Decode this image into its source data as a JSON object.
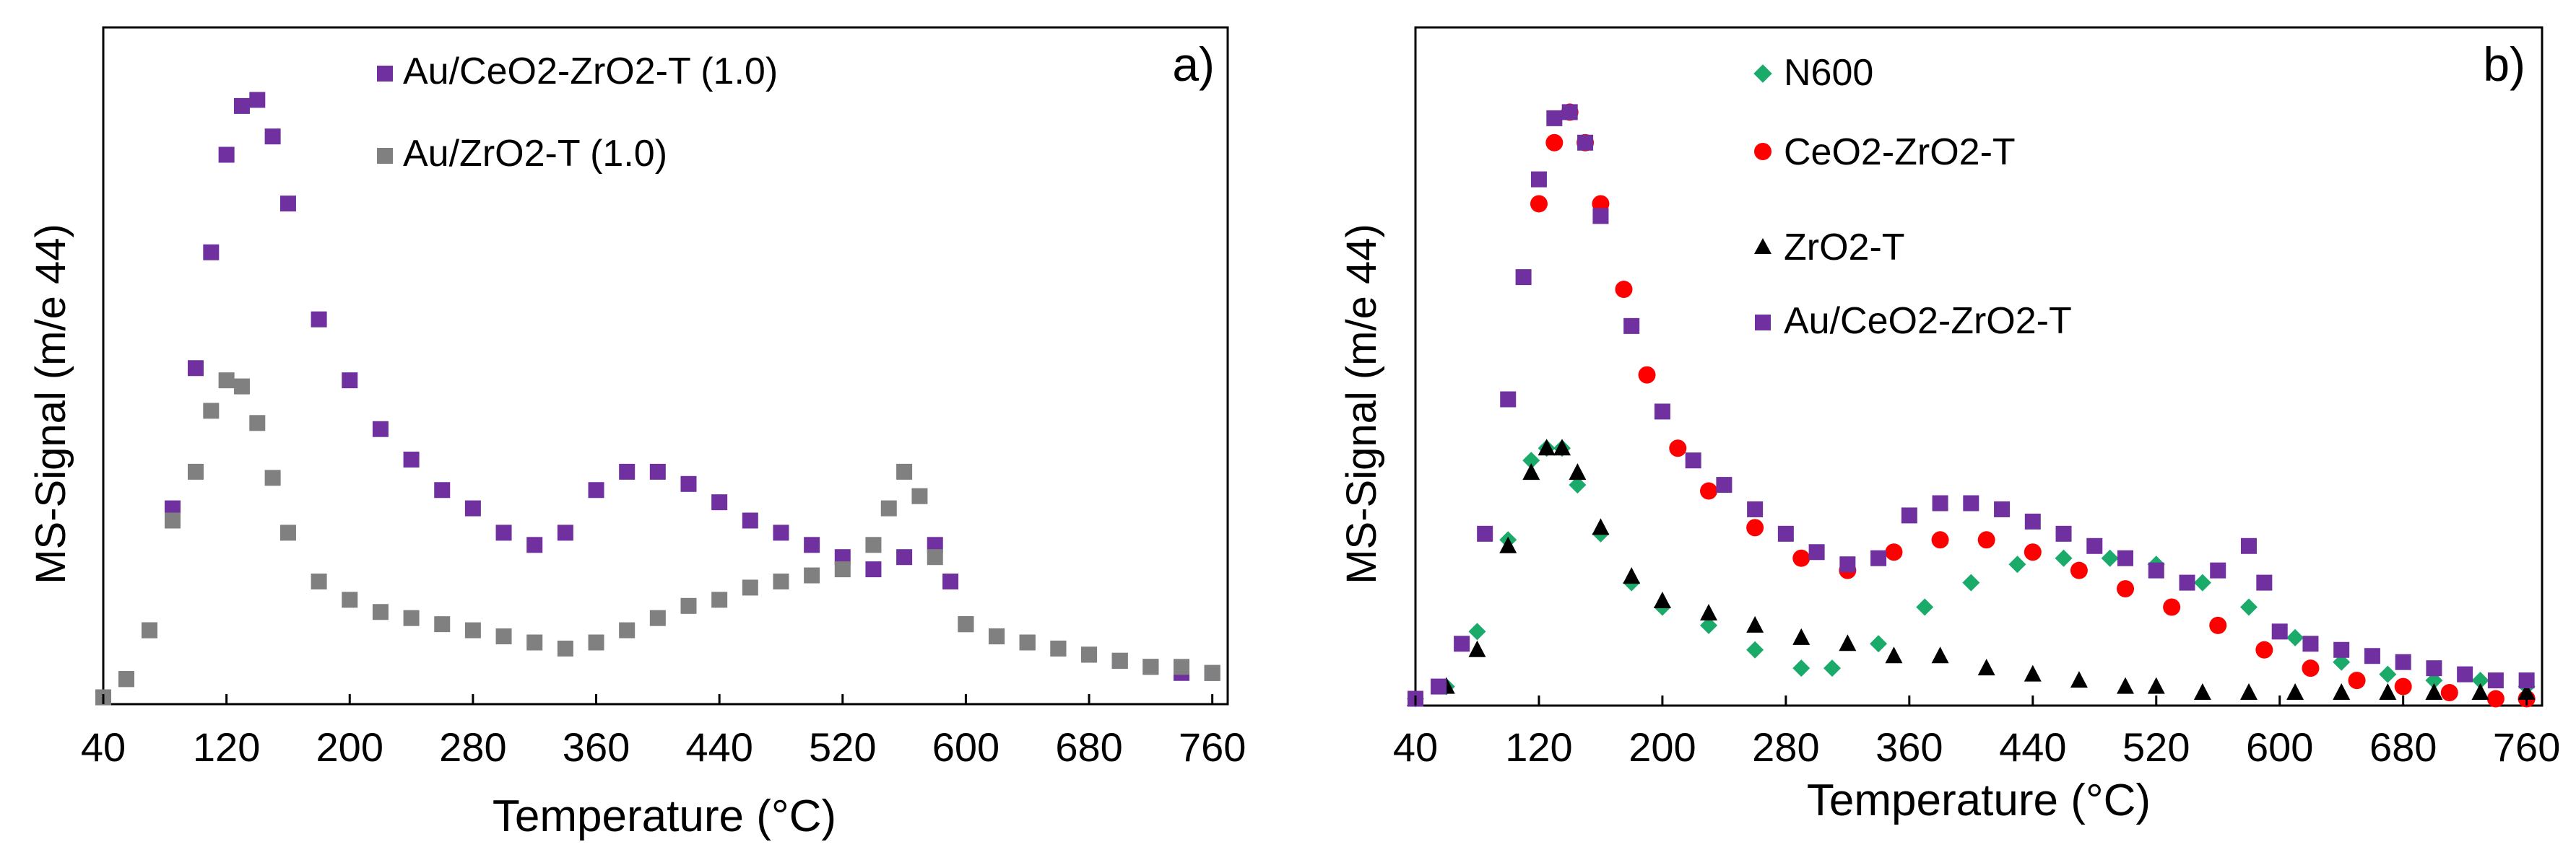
{
  "chart_data": [
    {
      "type": "scatter",
      "panel_label": "a)",
      "xlabel": "Temperature (°C)",
      "ylabel": "MS-Signal (m/e 44)",
      "xlim": [
        40,
        770
      ],
      "ylim": [
        0,
        1.0
      ],
      "xticks": [
        40,
        120,
        200,
        280,
        360,
        440,
        520,
        600,
        680,
        760
      ],
      "grid": false,
      "legend": "top-center",
      "series": [
        {
          "name": "Au/CeO2-ZrO2-T (1.0)",
          "color": "#7030a0",
          "marker": "square",
          "x": [
            40,
            55,
            70,
            85,
            100,
            110,
            120,
            130,
            140,
            150,
            160,
            180,
            200,
            220,
            240,
            260,
            280,
            300,
            320,
            340,
            360,
            380,
            400,
            420,
            440,
            460,
            480,
            500,
            520,
            540,
            560,
            580,
            590,
            600,
            620,
            640,
            660,
            680,
            700,
            720,
            740,
            760
          ],
          "y": [
            0.01,
            0.04,
            0.12,
            0.32,
            0.55,
            0.74,
            0.9,
            0.98,
            0.99,
            0.93,
            0.82,
            0.63,
            0.53,
            0.45,
            0.4,
            0.35,
            0.32,
            0.28,
            0.26,
            0.28,
            0.35,
            0.38,
            0.38,
            0.36,
            0.33,
            0.3,
            0.28,
            0.26,
            0.24,
            0.22,
            0.24,
            0.26,
            0.2,
            0.13,
            0.11,
            0.1,
            0.09,
            0.08,
            0.07,
            0.06,
            0.05,
            0.05
          ]
        },
        {
          "name": "Au/ZrO2-T (1.0)",
          "color": "#808080",
          "marker": "square",
          "x": [
            40,
            55,
            70,
            85,
            100,
            110,
            120,
            130,
            140,
            150,
            160,
            180,
            200,
            220,
            240,
            260,
            280,
            300,
            320,
            340,
            360,
            380,
            400,
            420,
            440,
            460,
            480,
            500,
            520,
            540,
            550,
            560,
            570,
            580,
            600,
            620,
            640,
            660,
            680,
            700,
            720,
            740,
            760
          ],
          "y": [
            0.01,
            0.04,
            0.12,
            0.3,
            0.38,
            0.48,
            0.53,
            0.52,
            0.46,
            0.37,
            0.28,
            0.2,
            0.17,
            0.15,
            0.14,
            0.13,
            0.12,
            0.11,
            0.1,
            0.09,
            0.1,
            0.12,
            0.14,
            0.16,
            0.17,
            0.19,
            0.2,
            0.21,
            0.22,
            0.26,
            0.32,
            0.38,
            0.34,
            0.24,
            0.13,
            0.11,
            0.1,
            0.09,
            0.08,
            0.07,
            0.06,
            0.06,
            0.05
          ]
        }
      ]
    },
    {
      "type": "scatter",
      "panel_label": "b)",
      "xlabel": "Temperature (°C)",
      "ylabel": "MS-Signal (m/e 44)",
      "xlim": [
        40,
        770
      ],
      "ylim": [
        0,
        1.0
      ],
      "xticks": [
        40,
        120,
        200,
        280,
        360,
        440,
        520,
        600,
        680,
        760
      ],
      "grid": false,
      "legend": "top-center",
      "series": [
        {
          "name": "N600",
          "color": "#1aaa6a",
          "marker": "diamond",
          "x": [
            40,
            60,
            80,
            100,
            115,
            125,
            135,
            145,
            160,
            180,
            200,
            230,
            260,
            290,
            310,
            340,
            370,
            400,
            430,
            460,
            490,
            520,
            550,
            580,
            610,
            640,
            670,
            700,
            730,
            760
          ],
          "y": [
            0.01,
            0.03,
            0.12,
            0.27,
            0.4,
            0.42,
            0.42,
            0.36,
            0.28,
            0.2,
            0.16,
            0.13,
            0.09,
            0.06,
            0.06,
            0.1,
            0.16,
            0.2,
            0.23,
            0.24,
            0.24,
            0.23,
            0.2,
            0.16,
            0.11,
            0.07,
            0.05,
            0.04,
            0.04,
            0.03
          ]
        },
        {
          "name": "CeO2-ZrO2-T",
          "color": "#ff0000",
          "marker": "circle",
          "x": [
            120,
            130,
            140,
            150,
            160,
            175,
            190,
            210,
            230,
            260,
            290,
            320,
            350,
            380,
            410,
            440,
            470,
            500,
            530,
            560,
            590,
            620,
            650,
            680,
            710,
            740,
            760
          ],
          "y": [
            0.82,
            0.92,
            0.97,
            0.92,
            0.82,
            0.68,
            0.54,
            0.42,
            0.35,
            0.29,
            0.24,
            0.22,
            0.25,
            0.27,
            0.27,
            0.25,
            0.22,
            0.19,
            0.16,
            0.13,
            0.09,
            0.06,
            0.04,
            0.03,
            0.02,
            0.01,
            0.01
          ]
        },
        {
          "name": "ZrO2-T",
          "color": "#000000",
          "marker": "triangle",
          "x": [
            40,
            60,
            80,
            100,
            115,
            125,
            135,
            145,
            160,
            180,
            200,
            230,
            260,
            290,
            320,
            350,
            380,
            410,
            440,
            470,
            500,
            520,
            550,
            580,
            610,
            640,
            670,
            700,
            730,
            760
          ],
          "y": [
            0.01,
            0.03,
            0.09,
            0.26,
            0.38,
            0.42,
            0.42,
            0.38,
            0.29,
            0.21,
            0.17,
            0.15,
            0.13,
            0.11,
            0.1,
            0.08,
            0.08,
            0.06,
            0.05,
            0.04,
            0.03,
            0.03,
            0.02,
            0.02,
            0.02,
            0.02,
            0.02,
            0.02,
            0.02,
            0.02
          ]
        },
        {
          "name": "Au/CeO2-ZrO2-T",
          "color": "#7030a0",
          "marker": "square",
          "x": [
            40,
            55,
            70,
            85,
            100,
            110,
            120,
            130,
            140,
            150,
            160,
            180,
            200,
            220,
            240,
            260,
            280,
            300,
            320,
            340,
            360,
            380,
            400,
            420,
            440,
            460,
            480,
            500,
            520,
            540,
            560,
            580,
            590,
            600,
            620,
            640,
            660,
            680,
            700,
            720,
            740,
            760
          ],
          "y": [
            0.01,
            0.03,
            0.1,
            0.28,
            0.5,
            0.7,
            0.86,
            0.96,
            0.97,
            0.92,
            0.8,
            0.62,
            0.48,
            0.4,
            0.36,
            0.32,
            0.28,
            0.25,
            0.23,
            0.24,
            0.31,
            0.33,
            0.33,
            0.32,
            0.3,
            0.28,
            0.26,
            0.24,
            0.22,
            0.2,
            0.22,
            0.26,
            0.2,
            0.12,
            0.1,
            0.09,
            0.08,
            0.07,
            0.06,
            0.05,
            0.04,
            0.04
          ]
        }
      ]
    }
  ]
}
